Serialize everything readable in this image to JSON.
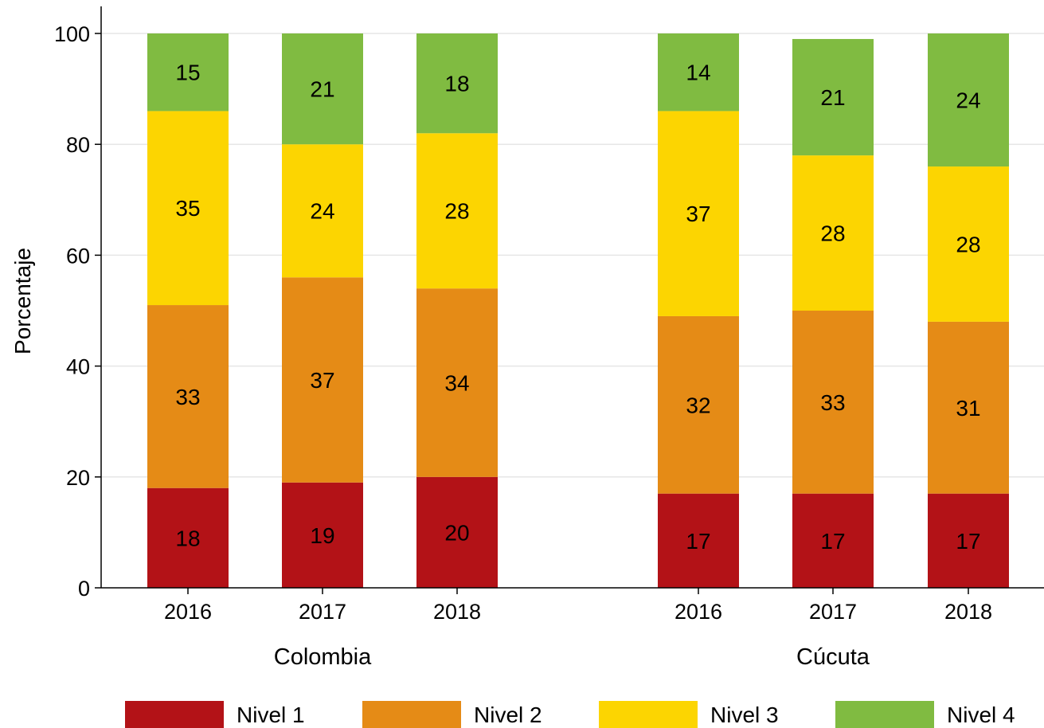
{
  "chart_data": {
    "type": "bar",
    "stacked": true,
    "ylabel": "Porcentaje",
    "ylim": [
      0,
      100
    ],
    "yticks": [
      0,
      20,
      40,
      60,
      80,
      100
    ],
    "grid": true,
    "legend_position": "bottom",
    "groups": [
      {
        "name": "Colombia",
        "categories": [
          "2016",
          "2017",
          "2018"
        ]
      },
      {
        "name": "Cúcuta",
        "categories": [
          "2016",
          "2017",
          "2018"
        ]
      }
    ],
    "series": [
      {
        "name": "Nivel 1",
        "color": "#b31217",
        "values": [
          18,
          19,
          20,
          17,
          17,
          17
        ]
      },
      {
        "name": "Nivel 2",
        "color": "#e58b16",
        "values": [
          33,
          37,
          34,
          32,
          33,
          31
        ]
      },
      {
        "name": "Nivel 3",
        "color": "#fcd501",
        "values": [
          35,
          24,
          28,
          37,
          28,
          28
        ]
      },
      {
        "name": "Nivel 4",
        "color": "#80bb41",
        "values": [
          15,
          21,
          18,
          14,
          21,
          24
        ]
      }
    ]
  }
}
